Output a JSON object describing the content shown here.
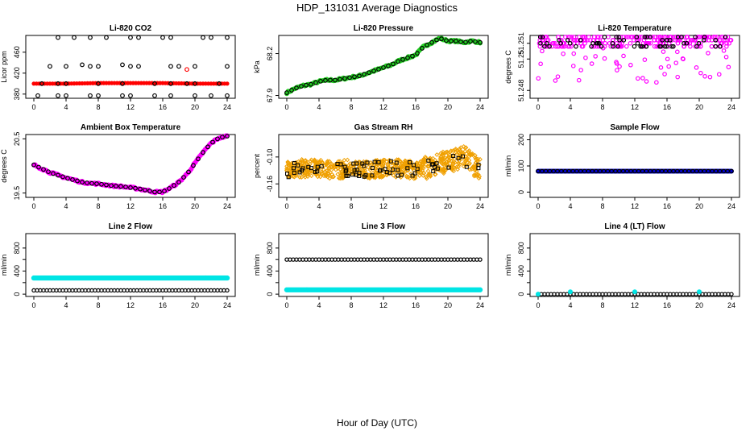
{
  "title": "HDP_131031  Average Diagnostics",
  "xlabel": "Hour of Day (UTC)",
  "colors": {
    "black": "#000000",
    "red": "#ff0000",
    "green": "#22cc22",
    "magenta": "#ff00ff",
    "orange": "#f0a000",
    "blue": "#0000cc",
    "cyan": "#00e5e5"
  },
  "chart_data": [
    {
      "type": "scatter",
      "title": "Li-820 CO2",
      "ylabel": "Licor ppm",
      "xlim": [
        0,
        24
      ],
      "xticks": [
        0,
        4,
        8,
        12,
        16,
        20,
        24
      ],
      "ylim": [
        372,
        492
      ],
      "yticks": [
        380,
        420,
        460
      ],
      "ytick_labels": [
        "380",
        "420",
        "460"
      ],
      "series": [
        {
          "color": "red",
          "style": "line",
          "x": [
            0,
            4,
            8,
            12,
            16,
            20,
            24
          ],
          "y": [
            400,
            400,
            401,
            401,
            401,
            400,
            400
          ]
        },
        {
          "color": "black",
          "style": "points",
          "y_levels": [
            400,
            377,
            433,
            488
          ],
          "note": "scattered values"
        },
        {
          "color": "red",
          "style": "points",
          "x": [
            19
          ],
          "y": [
            427
          ]
        }
      ]
    },
    {
      "type": "scatter",
      "title": "Li-820 Pressure",
      "ylabel": "kPa",
      "xlim": [
        0,
        24
      ],
      "xticks": [
        0,
        4,
        8,
        12,
        16,
        20,
        24
      ],
      "ylim": [
        67.88,
        68.33
      ],
      "yticks": [
        67.9,
        68.2
      ],
      "ytick_labels": [
        "67.9",
        "68.2"
      ],
      "series": [
        {
          "color": "green",
          "x": [
            0,
            1,
            2,
            3,
            4,
            5,
            6,
            7,
            8,
            9,
            10,
            11,
            12,
            13,
            14,
            15,
            16,
            17,
            18,
            19,
            20,
            21,
            22,
            23,
            24
          ],
          "y": [
            67.92,
            67.95,
            67.97,
            67.98,
            68.0,
            68.01,
            68.01,
            68.02,
            68.03,
            68.04,
            68.06,
            68.08,
            68.1,
            68.12,
            68.15,
            68.17,
            68.19,
            68.25,
            68.28,
            68.31,
            68.29,
            68.29,
            68.28,
            68.29,
            68.28
          ]
        }
      ]
    },
    {
      "type": "scatter",
      "title": "Li-820 Temperature",
      "ylabel": "degrees C",
      "xlim": [
        0,
        24
      ],
      "xticks": [
        0,
        4,
        8,
        12,
        16,
        20,
        24
      ],
      "ylim": [
        51.2475,
        51.2515
      ],
      "yticks": [
        51.248,
        51.25,
        51.251
      ],
      "ytick_labels": [
        "51.248",
        "51.25",
        "51.251"
      ],
      "series": [
        {
          "color": "magenta",
          "y_levels": [
            51.2508,
            51.251,
            51.2512,
            51.2514
          ],
          "note": "dense bands with scattered lows"
        }
      ]
    },
    {
      "type": "scatter",
      "title": "Ambient Box Temperature",
      "ylabel": "degrees C",
      "xlim": [
        0,
        24
      ],
      "xticks": [
        0,
        4,
        8,
        12,
        16,
        20,
        24
      ],
      "ylim": [
        19.42,
        20.58
      ],
      "yticks": [
        19.5,
        20.5
      ],
      "ytick_labels": [
        "19.5",
        "20.5"
      ],
      "series": [
        {
          "color": "magenta",
          "x": [
            0,
            1,
            2,
            3,
            4,
            5,
            6,
            7,
            8,
            9,
            10,
            11,
            12,
            13,
            14,
            15,
            16,
            17,
            18,
            19,
            20,
            21,
            22,
            23,
            24
          ],
          "y": [
            20.02,
            19.95,
            19.88,
            19.83,
            19.78,
            19.74,
            19.7,
            19.68,
            19.67,
            19.65,
            19.63,
            19.62,
            19.6,
            19.58,
            19.55,
            19.52,
            19.52,
            19.6,
            19.7,
            19.85,
            20.05,
            20.25,
            20.42,
            20.52,
            20.55
          ]
        }
      ]
    },
    {
      "type": "scatter",
      "title": "Gas Stream RH",
      "ylabel": "percent",
      "xlim": [
        0,
        24
      ],
      "xticks": [
        0,
        4,
        8,
        12,
        16,
        20,
        24
      ],
      "ylim": [
        -0.19,
        -0.05
      ],
      "yticks": [
        -0.16,
        -0.1
      ],
      "ytick_labels": [
        "-0.16",
        "-0.10"
      ],
      "series": [
        {
          "color": "orange",
          "x": [
            0,
            2,
            4,
            6,
            8,
            10,
            12,
            14,
            16,
            18,
            20,
            22,
            24
          ],
          "y": [
            -0.13,
            -0.125,
            -0.125,
            -0.13,
            -0.125,
            -0.13,
            -0.125,
            -0.125,
            -0.13,
            -0.12,
            -0.11,
            -0.1,
            -0.13
          ]
        }
      ]
    },
    {
      "type": "scatter",
      "title": "Sample Flow",
      "ylabel": "ml/min",
      "xlim": [
        0,
        24
      ],
      "xticks": [
        0,
        4,
        8,
        12,
        16,
        20,
        24
      ],
      "ylim": [
        -20,
        220
      ],
      "yticks": [
        0,
        100,
        200
      ],
      "ytick_labels": [
        "0",
        "100",
        "200"
      ],
      "series": [
        {
          "color": "blue",
          "x": [
            0,
            4,
            8,
            12,
            16,
            20,
            24
          ],
          "y": [
            80,
            80,
            80,
            80,
            80,
            80,
            80
          ]
        }
      ]
    },
    {
      "type": "scatter",
      "title": "Line 2 Flow",
      "ylabel": "ml/min",
      "xlim": [
        0,
        24
      ],
      "xticks": [
        0,
        4,
        8,
        12,
        16,
        20,
        24
      ],
      "ylim": [
        -40,
        1050
      ],
      "yticks": [
        0,
        200,
        400,
        600,
        800
      ],
      "ytick_labels": [
        "0",
        "400",
        "800"
      ],
      "series": [
        {
          "color": "cyan",
          "x": [
            0,
            4,
            8,
            12,
            16,
            20,
            24
          ],
          "y": [
            280,
            280,
            280,
            280,
            280,
            280,
            280
          ]
        },
        {
          "color": "black",
          "x": [
            0,
            4,
            8,
            12,
            16,
            20,
            24
          ],
          "y": [
            65,
            65,
            65,
            65,
            65,
            65,
            65
          ]
        }
      ]
    },
    {
      "type": "scatter",
      "title": "Line 3 Flow",
      "ylabel": "ml/min",
      "xlim": [
        0,
        24
      ],
      "xticks": [
        0,
        4,
        8,
        12,
        16,
        20,
        24
      ],
      "ylim": [
        -40,
        1050
      ],
      "yticks": [
        0,
        200,
        400,
        600,
        800
      ],
      "ytick_labels": [
        "0",
        "400",
        "800"
      ],
      "series": [
        {
          "color": "black",
          "x": [
            0,
            4,
            8,
            12,
            16,
            20,
            24
          ],
          "y": [
            600,
            600,
            600,
            600,
            600,
            600,
            600
          ]
        },
        {
          "color": "cyan",
          "x": [
            0,
            4,
            8,
            12,
            16,
            20,
            24
          ],
          "y": [
            75,
            75,
            75,
            75,
            75,
            75,
            75
          ]
        }
      ]
    },
    {
      "type": "scatter",
      "title": "Line 4 (LT) Flow",
      "ylabel": "ml/min",
      "xlim": [
        0,
        24
      ],
      "xticks": [
        0,
        4,
        8,
        12,
        16,
        20,
        24
      ],
      "ylim": [
        -40,
        1050
      ],
      "yticks": [
        0,
        200,
        400,
        600,
        800
      ],
      "ytick_labels": [
        "0",
        "400",
        "800"
      ],
      "series": [
        {
          "color": "black",
          "x": [
            0,
            4,
            8,
            12,
            16,
            20,
            24
          ],
          "y": [
            0,
            0,
            0,
            0,
            0,
            0,
            0
          ]
        },
        {
          "color": "cyan",
          "x": [
            0,
            4,
            12,
            20
          ],
          "y": [
            0,
            40,
            40,
            40
          ]
        }
      ]
    }
  ]
}
